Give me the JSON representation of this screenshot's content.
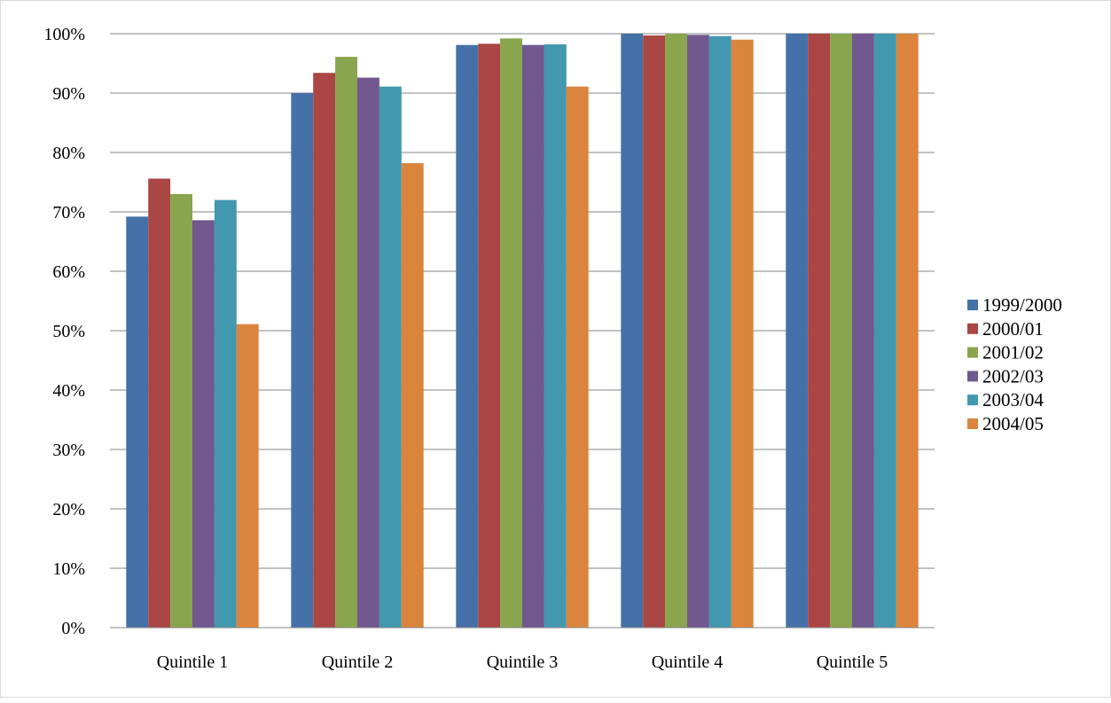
{
  "chart_data": {
    "type": "bar",
    "title": "",
    "xlabel": "",
    "ylabel": "",
    "categories": [
      "Quintile 1",
      "Quintile 2",
      "Quintile 3",
      "Quintile 4",
      "Quintile 5"
    ],
    "ylim": [
      0,
      1
    ],
    "yticks": [
      "0%",
      "10%",
      "20%",
      "30%",
      "40%",
      "50%",
      "60%",
      "70%",
      "80%",
      "90%",
      "100%"
    ],
    "grid": true,
    "legend_position": "right",
    "series": [
      {
        "name": "1999/2000",
        "color": "#4472A8",
        "values": [
          0.692,
          0.9,
          0.981,
          1.0,
          1.0
        ]
      },
      {
        "name": "2000/01",
        "color": "#AA4644",
        "values": [
          0.756,
          0.934,
          0.983,
          0.997,
          1.0
        ]
      },
      {
        "name": "2001/02",
        "color": "#89A54E",
        "values": [
          0.73,
          0.961,
          0.992,
          1.0,
          1.0
        ]
      },
      {
        "name": "2002/03",
        "color": "#71588F",
        "values": [
          0.686,
          0.926,
          0.981,
          0.998,
          1.0
        ]
      },
      {
        "name": "2003/04",
        "color": "#4198AF",
        "values": [
          0.72,
          0.911,
          0.982,
          0.996,
          1.0
        ]
      },
      {
        "name": "2004/05",
        "color": "#DB843D",
        "values": [
          0.511,
          0.782,
          0.911,
          0.99,
          1.0
        ]
      }
    ]
  }
}
